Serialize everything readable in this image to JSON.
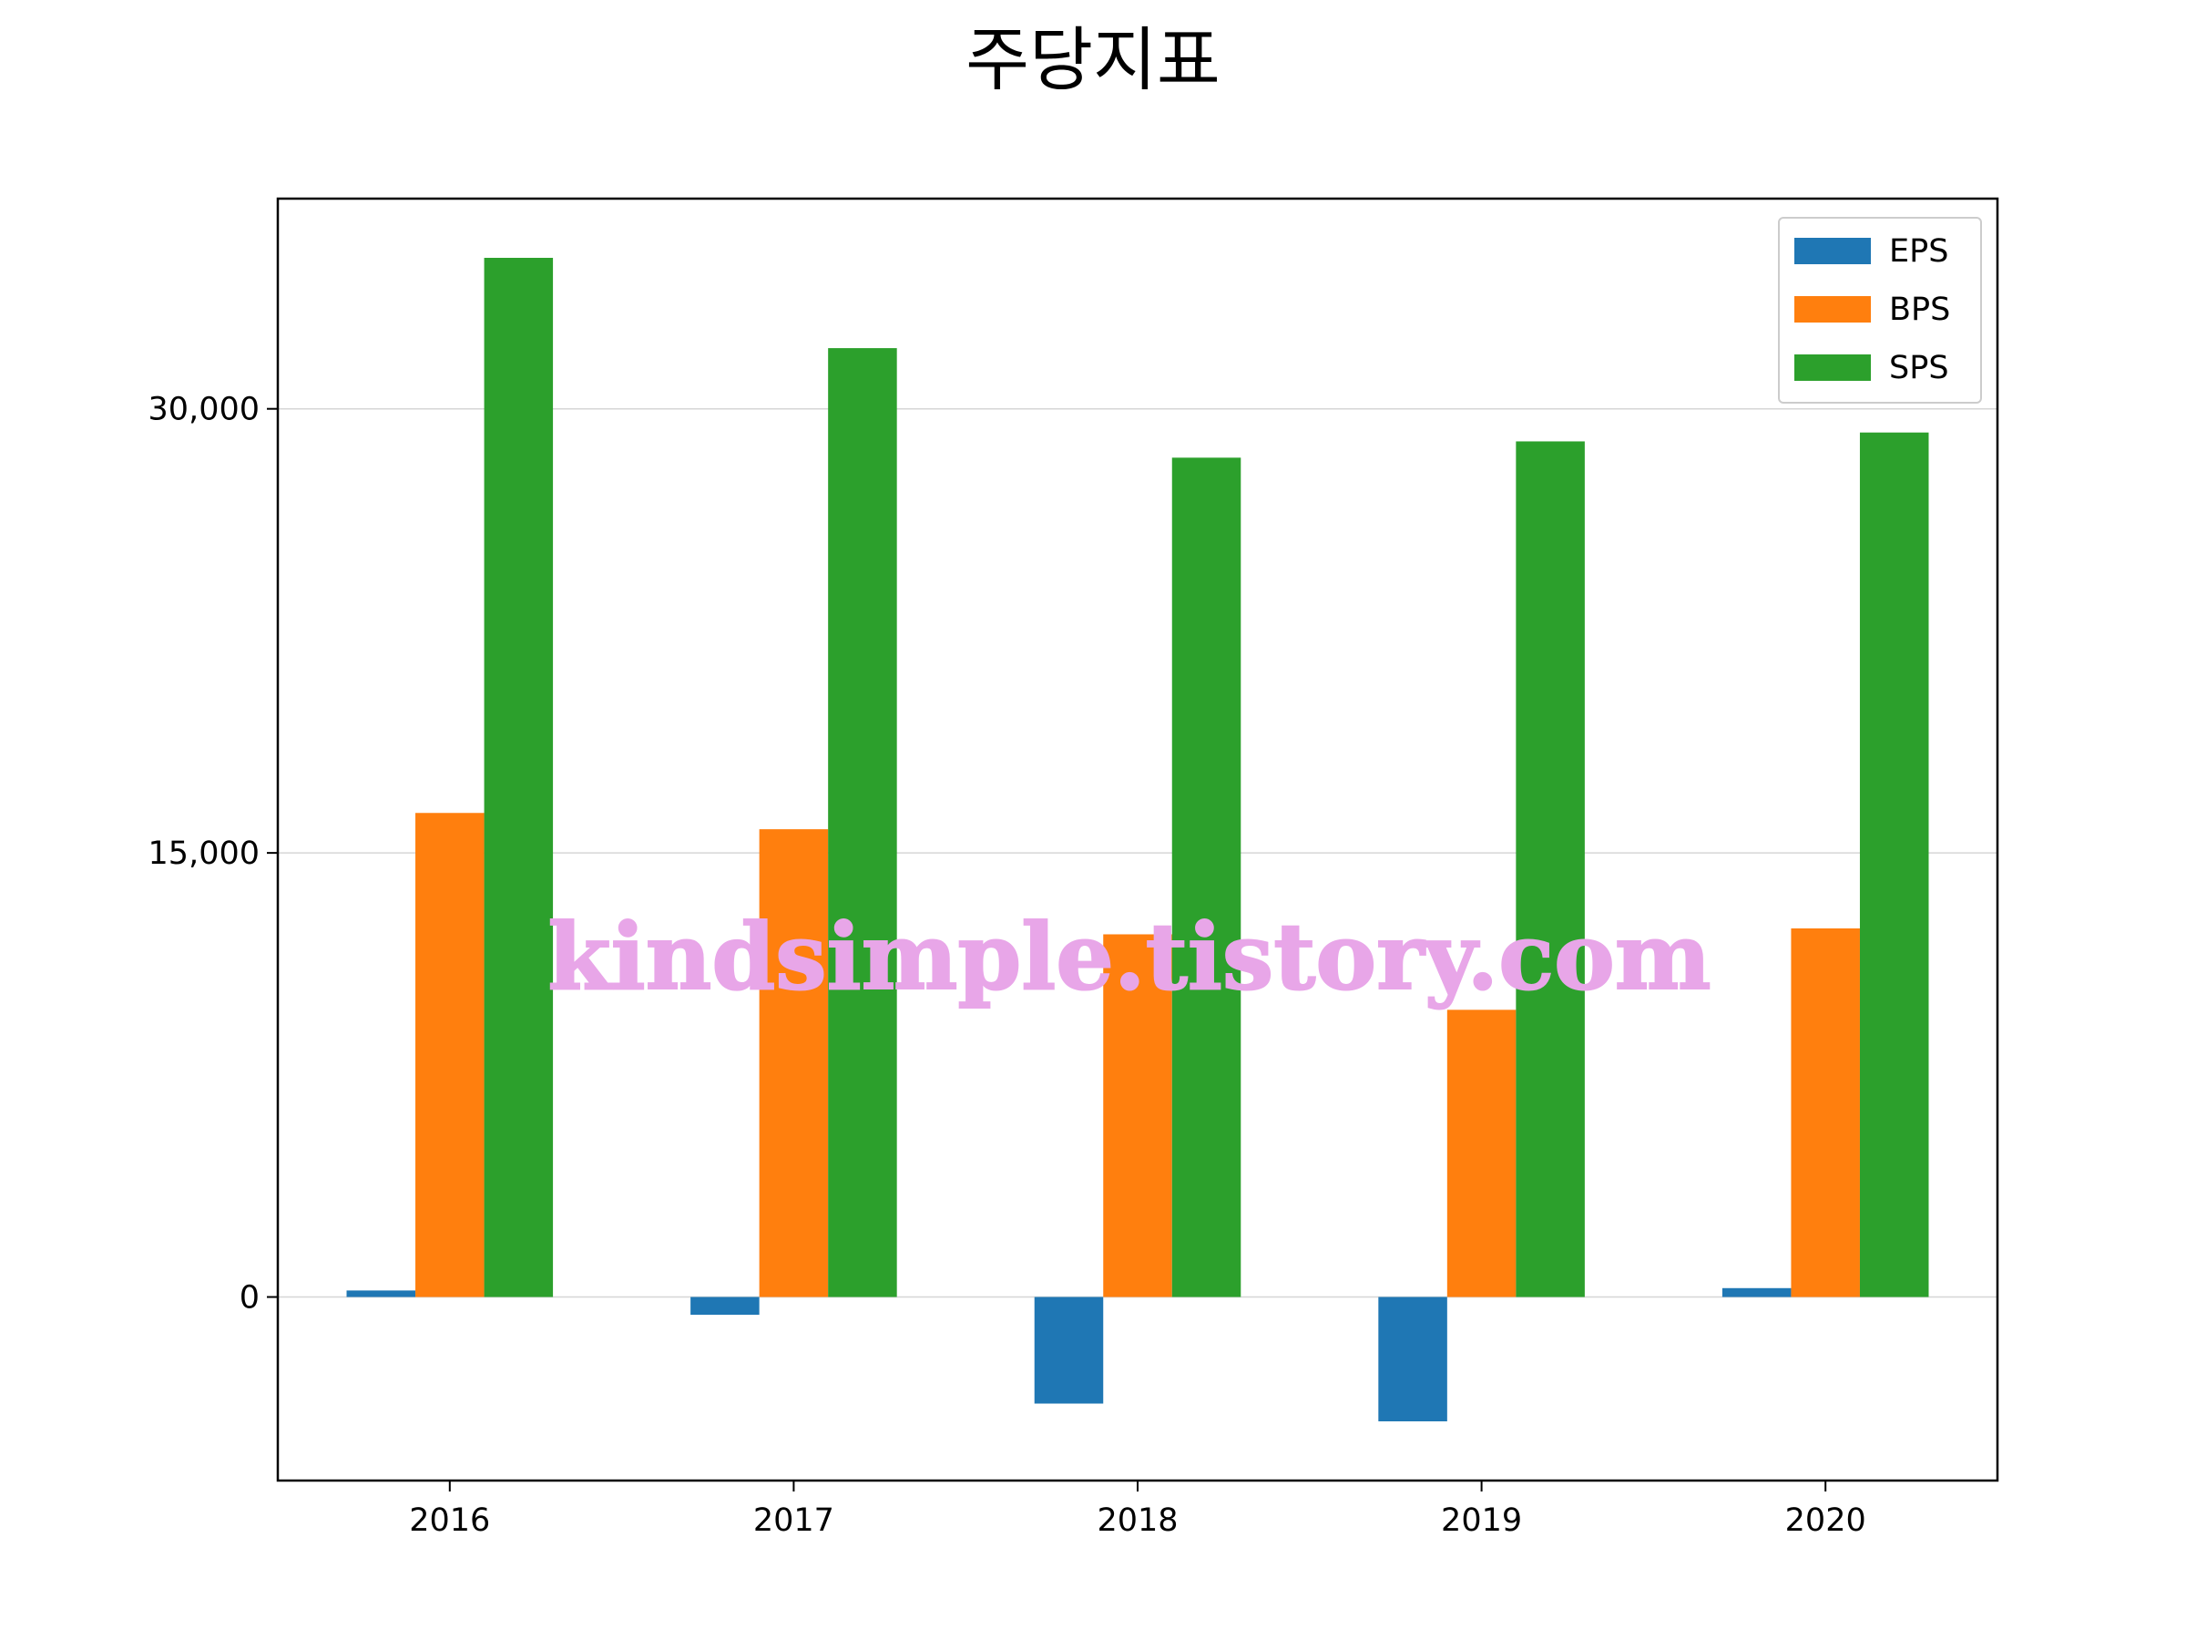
{
  "chart_data": {
    "type": "bar",
    "title": "주당지표",
    "xlabel": "",
    "ylabel": "",
    "categories": [
      "2016",
      "2017",
      "2018",
      "2019",
      "2020"
    ],
    "series": [
      {
        "name": "EPS",
        "color": "#1f77b4",
        "values": [
          220,
          -600,
          -3600,
          -4200,
          300
        ]
      },
      {
        "name": "BPS",
        "color": "#ff7f0e",
        "values": [
          16350,
          15800,
          12250,
          9700,
          12450
        ]
      },
      {
        "name": "SPS",
        "color": "#2ca02c",
        "values": [
          35100,
          32050,
          28350,
          28900,
          29200
        ]
      }
    ],
    "yticks": [
      0,
      15000,
      30000
    ],
    "ytick_labels": [
      "0",
      "15,000",
      "30,000"
    ],
    "ylim": [
      -6200,
      37100
    ],
    "grid": "horizontal",
    "legend_position": "top-right"
  },
  "watermark": "kindsimple.tistory.com"
}
